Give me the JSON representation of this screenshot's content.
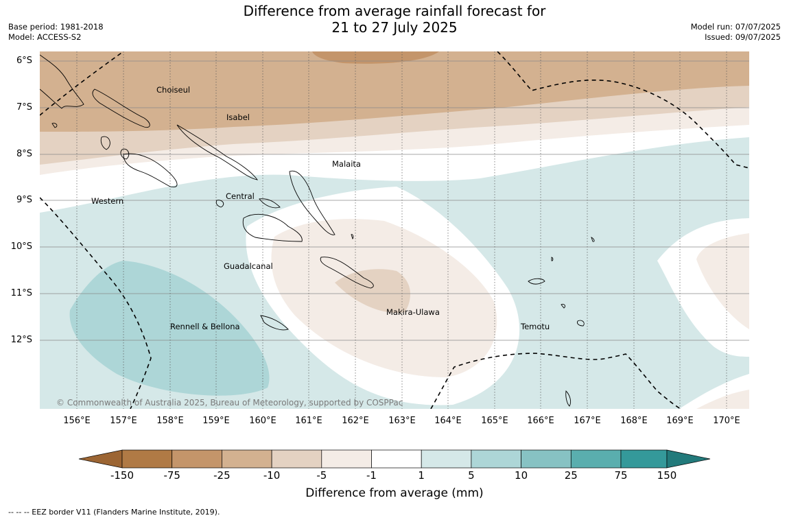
{
  "header": {
    "title_line1": "Difference from average rainfall forecast for",
    "title_line2": "21 to 27 July 2025",
    "base_period": "Base period: 1981-2018",
    "model": "Model: ACCESS-S2",
    "model_run": "Model run: 07/07/2025",
    "issued": "Issued: 09/07/2025"
  },
  "map": {
    "lat_labels": [
      "6°S",
      "7°S",
      "8°S",
      "9°S",
      "10°S",
      "11°S",
      "12°S"
    ],
    "lon_labels": [
      "156°E",
      "157°E",
      "158°E",
      "159°E",
      "160°E",
      "161°E",
      "162°E",
      "163°E",
      "164°E",
      "165°E",
      "166°E",
      "167°E",
      "168°E",
      "169°E",
      "170°E"
    ],
    "regions": [
      "Choiseul",
      "Isabel",
      "Malaita",
      "Western",
      "Central",
      "Guadalcanal",
      "Makira-Ulawa",
      "Temotu",
      "Rennell & Bellona"
    ],
    "copyright": "© Commonwealth of Australia 2025, Bureau of Meteorology, supported by COSPPac",
    "eez_line_style": "dashed"
  },
  "colorbar": {
    "ticks": [
      "-150",
      "-75",
      "-25",
      "-10",
      "-5",
      "-1",
      "1",
      "5",
      "10",
      "25",
      "75",
      "150"
    ],
    "colors": [
      "#9c6533",
      "#b07a45",
      "#c4956a",
      "#d3b190",
      "#e4d2c2",
      "#f4ece6",
      "#ffffff",
      "#d5e8e8",
      "#add6d7",
      "#87c2c3",
      "#5aaeae",
      "#34999a",
      "#227a7b"
    ],
    "label": "Difference from average (mm)"
  },
  "footnote": "-- -- -- EEZ border V11 (Flanders Marine Institute, 2019)."
}
